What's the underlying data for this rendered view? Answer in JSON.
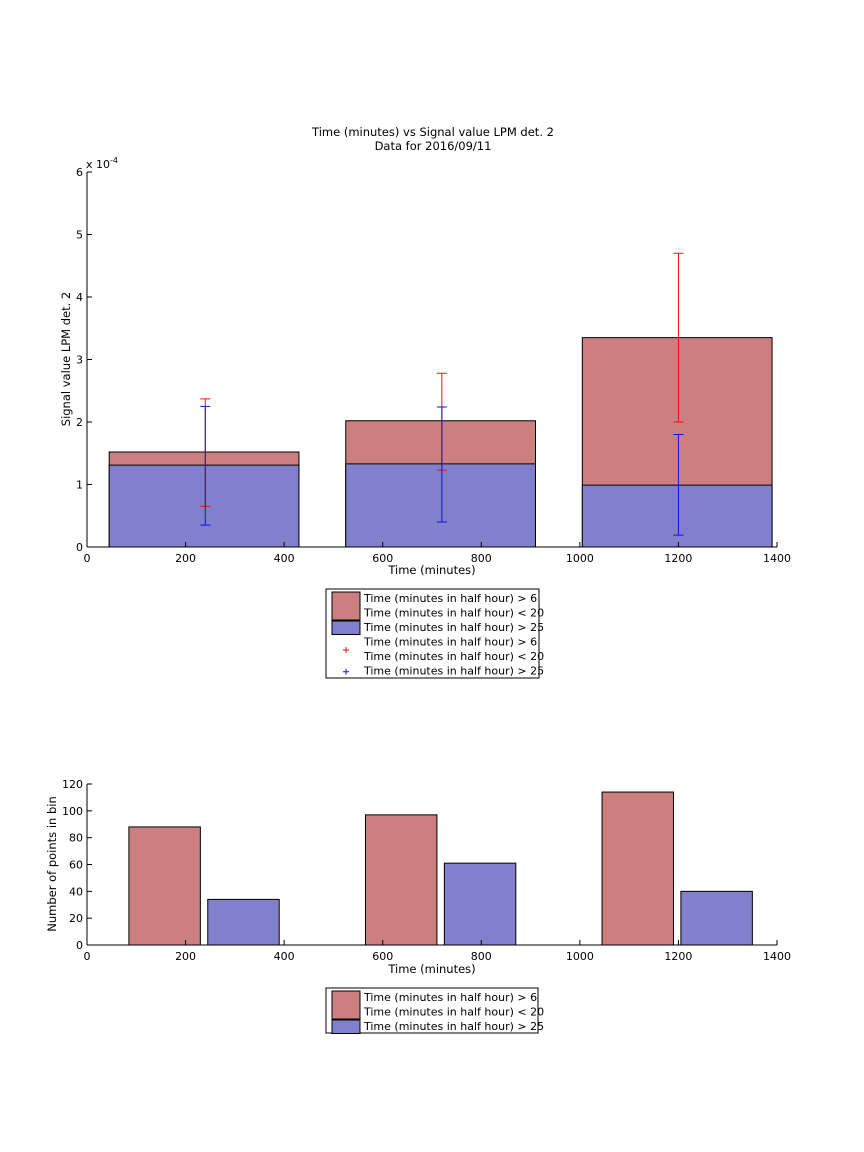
{
  "chart_data": [
    {
      "type": "bar",
      "title": "Time (minutes) vs Signal value LPM det. 2",
      "subtitle": "Data for 2016/09/11",
      "xlabel": "Time (minutes)",
      "ylabel": "Signal value LPM det. 2",
      "y_exponent_label": "x 10",
      "y_exponent_power": "-4",
      "xlim": [
        0,
        1400
      ],
      "ylim": [
        0,
        6
      ],
      "y_scale": "x 10^-4",
      "xticks": [
        "0",
        "200",
        "400",
        "600",
        "800",
        "1000",
        "1200",
        "1400"
      ],
      "yticks": [
        "0",
        "1",
        "2",
        "3",
        "4",
        "5",
        "6"
      ],
      "grid": false,
      "legend_position": "below",
      "colors": {
        "series1_fill": "#cb7f7f",
        "series2_fill": "#8080cc",
        "series1_err": "#ee1111",
        "series2_err": "#1111dd"
      },
      "bars": [
        {
          "x_start": 45,
          "x_end": 430,
          "series1_value": 1.52,
          "series2_value": 1.31
        },
        {
          "x_start": 525,
          "x_end": 910,
          "series1_value": 2.02,
          "series2_value": 1.33
        },
        {
          "x_start": 1005,
          "x_end": 1390,
          "series1_value": 3.35,
          "series2_value": 0.99
        }
      ],
      "error_bars": [
        {
          "series": 1,
          "x": 240,
          "low": 0.65,
          "high": 2.37
        },
        {
          "series": 2,
          "x": 240,
          "low": 0.35,
          "high": 2.25
        },
        {
          "series": 1,
          "x": 720,
          "low": 1.23,
          "high": 2.78
        },
        {
          "series": 2,
          "x": 720,
          "low": 0.4,
          "high": 2.24
        },
        {
          "series": 1,
          "x": 1200,
          "low": 2.0,
          "high": 4.7
        },
        {
          "series": 2,
          "x": 1200,
          "low": 0.19,
          "high": 1.8
        }
      ],
      "legend": [
        {
          "kind": "patch",
          "color": "series1_fill",
          "lines": [
            "Time (minutes in half hour) > 6",
            "Time (minutes in half hour) < 20"
          ]
        },
        {
          "kind": "patch",
          "color": "series2_fill",
          "lines": [
            "Time (minutes in half hour) > 25"
          ]
        },
        {
          "kind": "marker",
          "color": "series1_err",
          "lines": [
            "Time (minutes in half hour) > 6",
            "Time (minutes in half hour) < 20"
          ]
        },
        {
          "kind": "marker",
          "color": "series2_err",
          "lines": [
            "Time (minutes in half hour) > 25"
          ]
        }
      ]
    },
    {
      "type": "bar",
      "xlabel": "Time (minutes)",
      "ylabel": "Number of points in bin",
      "xlim": [
        0,
        1400
      ],
      "ylim": [
        0,
        120
      ],
      "xticks": [
        "0",
        "200",
        "400",
        "600",
        "800",
        "1000",
        "1200",
        "1400"
      ],
      "yticks": [
        "0",
        "20",
        "40",
        "60",
        "80",
        "100",
        "120"
      ],
      "grid": false,
      "legend_position": "below",
      "colors": {
        "series1_fill": "#cb7f7f",
        "series2_fill": "#8080cc"
      },
      "bars": [
        {
          "series": 1,
          "x_start": 85,
          "x_end": 230,
          "value": 88
        },
        {
          "series": 2,
          "x_start": 245,
          "x_end": 390,
          "value": 34
        },
        {
          "series": 1,
          "x_start": 565,
          "x_end": 710,
          "value": 97
        },
        {
          "series": 2,
          "x_start": 725,
          "x_end": 870,
          "value": 61
        },
        {
          "series": 1,
          "x_start": 1045,
          "x_end": 1190,
          "value": 114
        },
        {
          "series": 2,
          "x_start": 1205,
          "x_end": 1350,
          "value": 40
        }
      ],
      "legend": [
        {
          "kind": "patch",
          "color": "series1_fill",
          "lines": [
            "Time (minutes in half hour) > 6",
            "Time (minutes in half hour) < 20"
          ]
        },
        {
          "kind": "patch",
          "color": "series2_fill",
          "lines": [
            "Time (minutes in half hour) > 25"
          ]
        }
      ]
    }
  ]
}
